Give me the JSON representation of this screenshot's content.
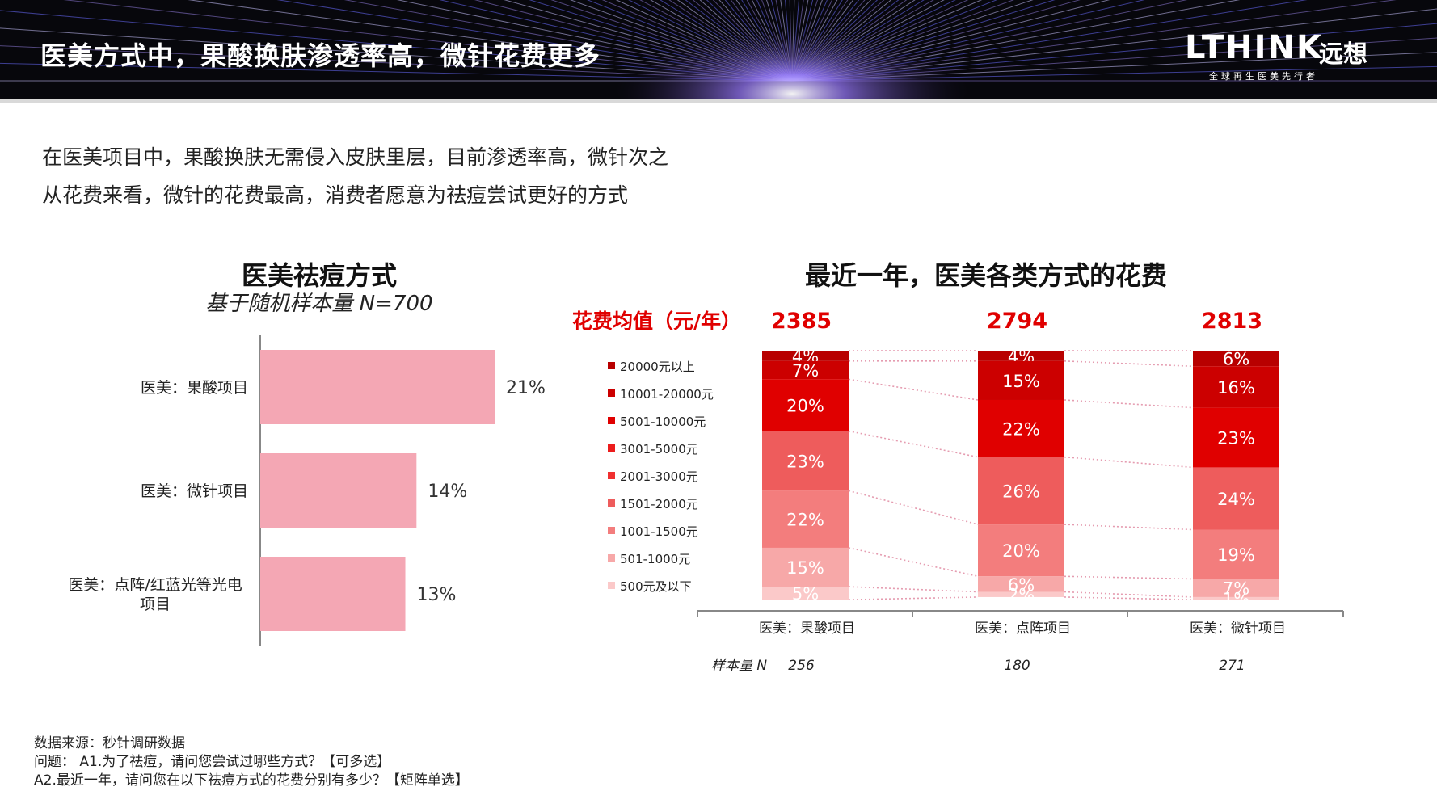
{
  "header": {
    "title": "医美方式中，果酸换肤渗透率高，微针花费更多",
    "logo_main": "LTHINK",
    "logo_cn": "远想",
    "logo_slogan": "全球再生医美先行者"
  },
  "summary": [
    "在医美项目中，果酸换肤无需侵入皮肤里层，目前渗透率高，微针次之",
    "从花费来看，微针的花费最高，消费者愿意为祛痘尝试更好的方式"
  ],
  "footnotes": [
    "数据来源：秒针调研数据",
    "问题： A1.为了祛痘，请问您尝试过哪些方式？【可多选】",
    "A2.最近一年，请问您在以下祛痘方式的花费分别有多少？【矩阵单选】"
  ],
  "chart_data": [
    {
      "type": "bar",
      "orientation": "horizontal",
      "title": "医美祛痘方式",
      "subtitle": "基于随机样本量 N=700",
      "categories": [
        "医美：果酸项目",
        "医美：微针项目",
        "医美：点阵/红蓝光等光电项目"
      ],
      "category_lines": [
        [
          "医美：果酸项目"
        ],
        [
          "医美：微针项目"
        ],
        [
          "医美：点阵/红蓝光等光电",
          "项目"
        ]
      ],
      "values": [
        21,
        14,
        13
      ],
      "value_labels": [
        "21%",
        "14%",
        "13%"
      ],
      "unit": "%",
      "xlim": [
        0,
        25
      ],
      "bar_color": "#f4a7b4",
      "axis_color": "#888888"
    },
    {
      "type": "bar",
      "stacked": true,
      "title": "最近一年，医美各类方式的花费",
      "mean_label": "花费均值（元/年）",
      "mean_values": [
        2385,
        2794,
        2813
      ],
      "mean_color": "#e00000",
      "categories": [
        "医美：果酸项目",
        "医美：点阵项目",
        "医美：微针项目"
      ],
      "sample_label": "样本量 N",
      "sample_sizes": [
        256,
        180,
        271
      ],
      "ylim": [
        0,
        100
      ],
      "series": [
        {
          "name": "20000元以上",
          "color": "#b80000",
          "values": [
            4,
            4,
            6
          ],
          "labels": [
            "4%",
            "4%",
            "6%"
          ]
        },
        {
          "name": "10001-20000元",
          "color": "#cc0000",
          "values": [
            7,
            15,
            16
          ],
          "labels": [
            "7%",
            "15%",
            "16%"
          ]
        },
        {
          "name": "5001-10000元",
          "color": "#e00000",
          "values": [
            20,
            22,
            23
          ],
          "labels": [
            "20%",
            "22%",
            "23%"
          ]
        },
        {
          "name": "3001-5000元",
          "color": "#ec1c1c",
          "values": [
            0,
            0,
            0
          ],
          "labels": [
            "",
            "",
            ""
          ]
        },
        {
          "name": "2001-3000元",
          "color": "#f03030",
          "values": [
            0,
            0,
            0
          ],
          "labels": [
            "",
            "",
            ""
          ]
        },
        {
          "name": "1501-2000元",
          "color": "#ee5c5c",
          "values": [
            23,
            26,
            24
          ],
          "labels": [
            "23%",
            "26%",
            "24%"
          ]
        },
        {
          "name": "1001-1500元",
          "color": "#f37d7d",
          "values": [
            22,
            20,
            19
          ],
          "labels": [
            "22%",
            "20%",
            "19%"
          ]
        },
        {
          "name": "501-1000元",
          "color": "#f7a8a8",
          "values": [
            15,
            6,
            7
          ],
          "labels": [
            "15%",
            "6%",
            "7%"
          ]
        },
        {
          "name": "500元及以下",
          "color": "#fbc9c9",
          "values": [
            5,
            2,
            1
          ],
          "labels": [
            "5%",
            "2%",
            "1%"
          ]
        }
      ],
      "legend_position": "left",
      "connector_lines": "dotted"
    }
  ]
}
